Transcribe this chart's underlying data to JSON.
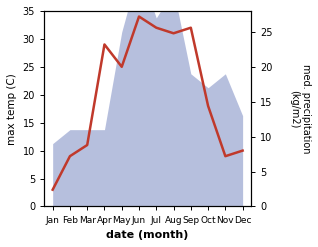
{
  "months": [
    "Jan",
    "Feb",
    "Mar",
    "Apr",
    "May",
    "Jun",
    "Jul",
    "Aug",
    "Sep",
    "Oct",
    "Nov",
    "Dec"
  ],
  "month_positions": [
    0,
    1,
    2,
    3,
    4,
    5,
    6,
    7,
    8,
    9,
    10,
    11
  ],
  "temperature": [
    3,
    9,
    11,
    29,
    25,
    34,
    32,
    31,
    32,
    18,
    9,
    10
  ],
  "precipitation": [
    9,
    11,
    11,
    11,
    25,
    34,
    27,
    31,
    19,
    17,
    19,
    13
  ],
  "temp_color": "#c0392b",
  "precip_color": "#aab4d8",
  "precip_edge_color": "#8090c0",
  "temp_ylim": [
    0,
    35
  ],
  "precip_ylim": [
    0,
    28
  ],
  "temp_yticks": [
    0,
    5,
    10,
    15,
    20,
    25,
    30,
    35
  ],
  "precip_yticks": [
    0,
    5,
    10,
    15,
    20,
    25
  ],
  "xlabel": "date (month)",
  "ylabel_left": "max temp (C)",
  "ylabel_right": "med. precipitation\n(kg/m2)",
  "title": "",
  "background_color": "#ffffff",
  "fig_width": 3.18,
  "fig_height": 2.47,
  "dpi": 100
}
